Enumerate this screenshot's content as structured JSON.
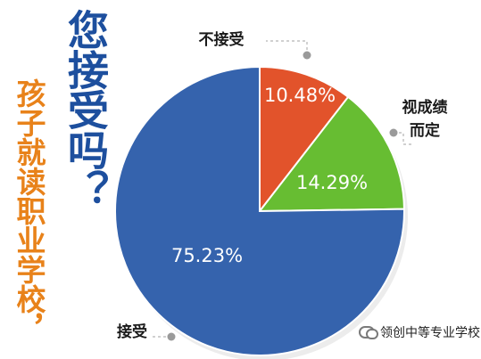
{
  "question": {
    "main": "您接受吗？",
    "sub": "孩子就读职业学校，"
  },
  "colors": {
    "question_main": "#1d4f9e",
    "question_sub": "#e8821a",
    "accept": "#3563ad",
    "reject": "#e2532b",
    "depends": "#67bd32",
    "leader_line": "#b5b5b5",
    "leader_dot": "#9a9a9a"
  },
  "chart_data": {
    "type": "pie",
    "title": "",
    "slices": [
      {
        "label": "不接受",
        "value": 10.48,
        "display": "10.48%",
        "color": "#e2532b"
      },
      {
        "label": "视成绩而定",
        "value": 14.29,
        "display": "14.29%",
        "color": "#67bd32"
      },
      {
        "label": "接受",
        "value": 75.23,
        "display": "75.23%",
        "color": "#3563ad"
      }
    ]
  },
  "watermark": {
    "icon": "wechat-icon",
    "text": "领创中等专业学校"
  }
}
